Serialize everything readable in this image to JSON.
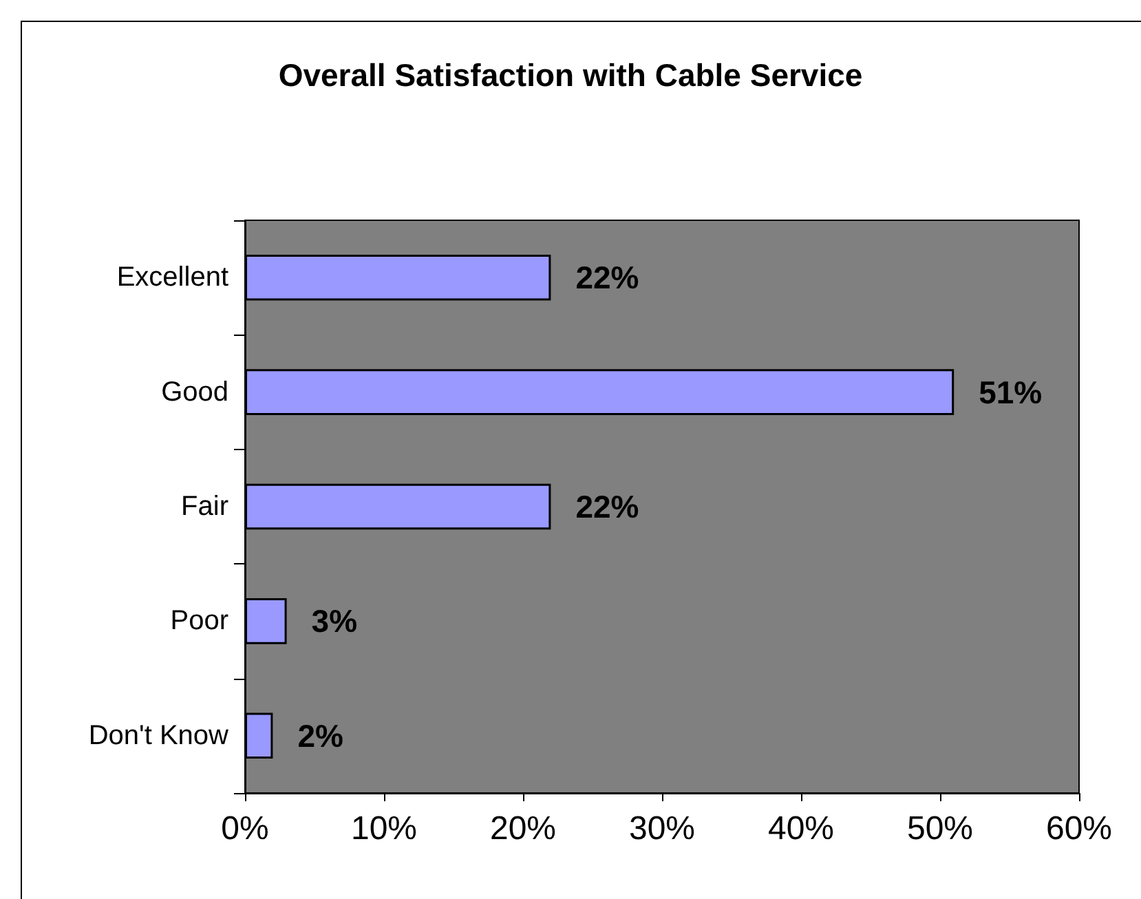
{
  "chart_data": {
    "type": "bar",
    "orientation": "horizontal",
    "title": "Overall Satisfaction with Cable Service",
    "categories": [
      "Excellent",
      "Good",
      "Fair",
      "Poor",
      "Don't Know"
    ],
    "values": [
      22,
      51,
      22,
      3,
      2
    ],
    "color": "#9999ff",
    "value_labels": [
      "22%",
      "51%",
      "22%",
      "3%",
      "2%"
    ],
    "xlim": [
      0,
      60
    ],
    "xticks": [
      {
        "value": 0,
        "label": "0%"
      },
      {
        "value": 10,
        "label": "10%"
      },
      {
        "value": 20,
        "label": "20%"
      },
      {
        "value": 30,
        "label": "30%"
      },
      {
        "value": 40,
        "label": "40%"
      },
      {
        "value": 50,
        "label": "50%"
      },
      {
        "value": 60,
        "label": "60%"
      }
    ]
  }
}
